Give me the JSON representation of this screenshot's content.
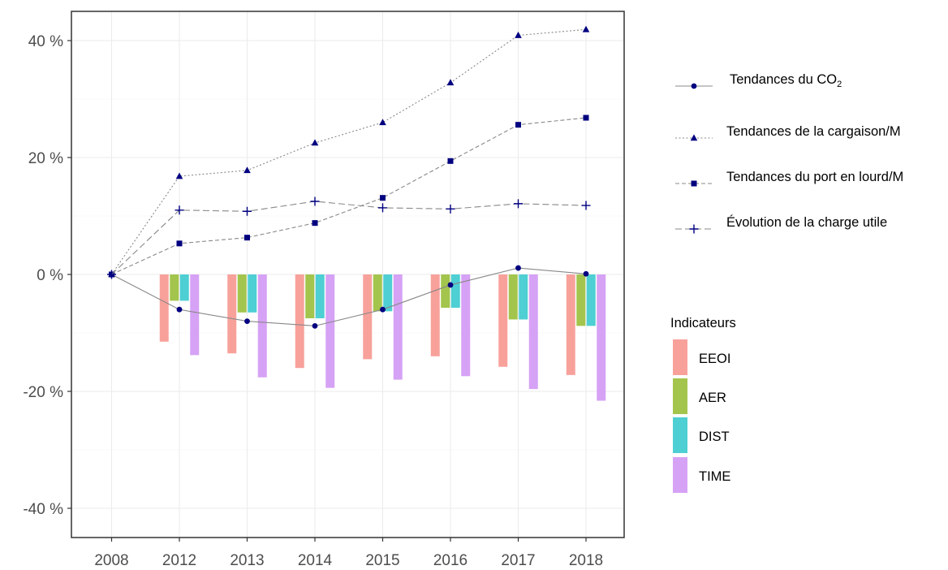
{
  "chart_data": {
    "type": "bar",
    "categories": [
      "2008",
      "2012",
      "2013",
      "2014",
      "2015",
      "2016",
      "2017",
      "2018"
    ],
    "ylim": [
      -45,
      45
    ],
    "y_ticks": [
      {
        "value": 40,
        "label": "40 %"
      },
      {
        "value": 20,
        "label": "20 %"
      },
      {
        "value": 0,
        "label": "0 %"
      },
      {
        "value": -20,
        "label": "-20 %"
      },
      {
        "value": -40,
        "label": "-40 %"
      }
    ],
    "grid": true,
    "legend_position": "right",
    "bar_legend_title": "Indicateurs",
    "bar_series": [
      {
        "name": "EEOI",
        "color": "#F8A19B",
        "values": [
          null,
          -11.5,
          -13.5,
          -16,
          -14.5,
          -14,
          -15.8,
          -17.2
        ]
      },
      {
        "name": "AER",
        "color": "#A3C54D",
        "values": [
          null,
          -4.5,
          -6.5,
          -7.5,
          -6.3,
          -5.7,
          -7.7,
          -8.8
        ]
      },
      {
        "name": "DIST",
        "color": "#4ECFD3",
        "values": [
          null,
          -4.5,
          -6.5,
          -7.5,
          -6.3,
          -5.7,
          -7.7,
          -8.8
        ]
      },
      {
        "name": "TIME",
        "color": "#D6A2F5",
        "values": [
          null,
          -13.8,
          -17.6,
          -19.4,
          -18,
          -17.4,
          -19.6,
          -21.6
        ]
      }
    ],
    "line_series": [
      {
        "name_prefix": "Tendances du CO",
        "name_subscript": "2",
        "marker": "circle",
        "dash": "solid",
        "color": "#888888",
        "marker_color": "#000080",
        "values": [
          0,
          -6,
          -8,
          -8.8,
          -6,
          -1.8,
          1.1,
          0.1
        ]
      },
      {
        "name": "Tendances de la cargaison/M",
        "marker": "triangle",
        "dash": "dotted",
        "color": "#888888",
        "marker_color": "#000080",
        "values": [
          0,
          16.8,
          17.8,
          22.5,
          26,
          32.8,
          40.9,
          41.9
        ]
      },
      {
        "name": "Tendances du port en lourd/M",
        "marker": "square",
        "dash": "dashed",
        "color": "#888888",
        "marker_color": "#000080",
        "values": [
          0,
          5.3,
          6.3,
          8.8,
          13.1,
          19.4,
          25.6,
          26.8
        ]
      },
      {
        "name": "Évolution de la charge utile",
        "marker": "plus",
        "dash": "longdash",
        "color": "#888888",
        "marker_color": "#000080",
        "values": [
          0,
          11,
          10.8,
          12.5,
          11.4,
          11.2,
          12.1,
          11.8
        ]
      }
    ]
  }
}
